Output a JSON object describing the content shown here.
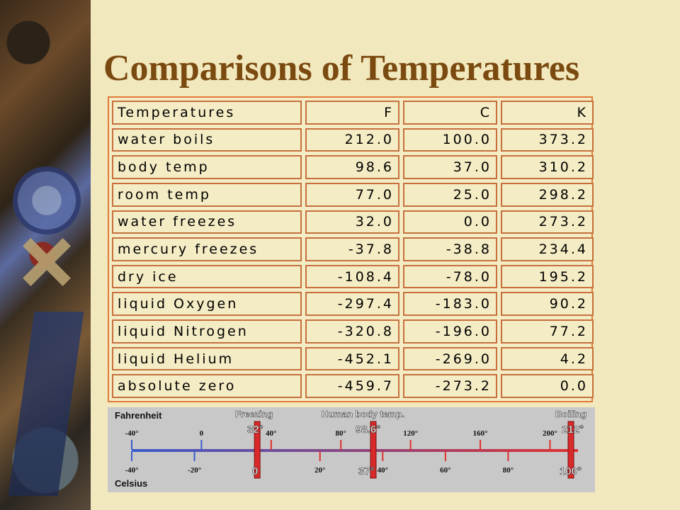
{
  "title": "Comparisons of Temperatures",
  "table": {
    "headers": [
      "Temperatures",
      "F",
      "C",
      "K"
    ],
    "rows": [
      [
        "water boils",
        "212.0",
        "100.0",
        "373.2"
      ],
      [
        "body temp",
        "98.6",
        "37.0",
        "310.2"
      ],
      [
        "room temp",
        "77.0",
        "25.0",
        "298.2"
      ],
      [
        "water freezes",
        "32.0",
        "0.0",
        "273.2"
      ],
      [
        "mercury freezes",
        "-37.8",
        "-38.8",
        "234.4"
      ],
      [
        "dry ice",
        "-108.4",
        "-78.0",
        "195.2"
      ],
      [
        "liquid Oxygen",
        "-297.4",
        "-183.0",
        "90.2"
      ],
      [
        "liquid Nitrogen",
        "-320.8",
        "-196.0",
        "77.2"
      ],
      [
        "liquid Helium",
        "-452.1",
        "-269.0",
        "4.2"
      ],
      [
        "absolute zero",
        "-459.7",
        "-273.2",
        "0.0"
      ]
    ]
  },
  "scale": {
    "fahrenheit_label": "Fahrenheit",
    "celsius_label": "Celsius",
    "freezing_label": "Freezing",
    "body_label": "Human body temp.",
    "boiling_label": "Boiling",
    "f_ticks": [
      "-40°",
      "0",
      "40°",
      "80°",
      "120°",
      "160°",
      "200°"
    ],
    "f_tick_values": [
      -40,
      0,
      40,
      80,
      120,
      160,
      200
    ],
    "c_ticks": [
      "-40°",
      "-20°",
      "20°",
      "40°",
      "60°",
      "80°"
    ],
    "c_tick_values": [
      -40,
      -20,
      20,
      40,
      60,
      80
    ],
    "f_freezing": "32°",
    "f_body": "98.6°",
    "f_boiling": "212°",
    "c_freezing": "0",
    "c_body": "37°",
    "c_boiling": "100°",
    "f_marker_values": [
      32,
      98.6,
      212
    ],
    "colors": {
      "cold": "#3a5acc",
      "hot": "#e03030",
      "marker": "#d82a2a"
    }
  }
}
